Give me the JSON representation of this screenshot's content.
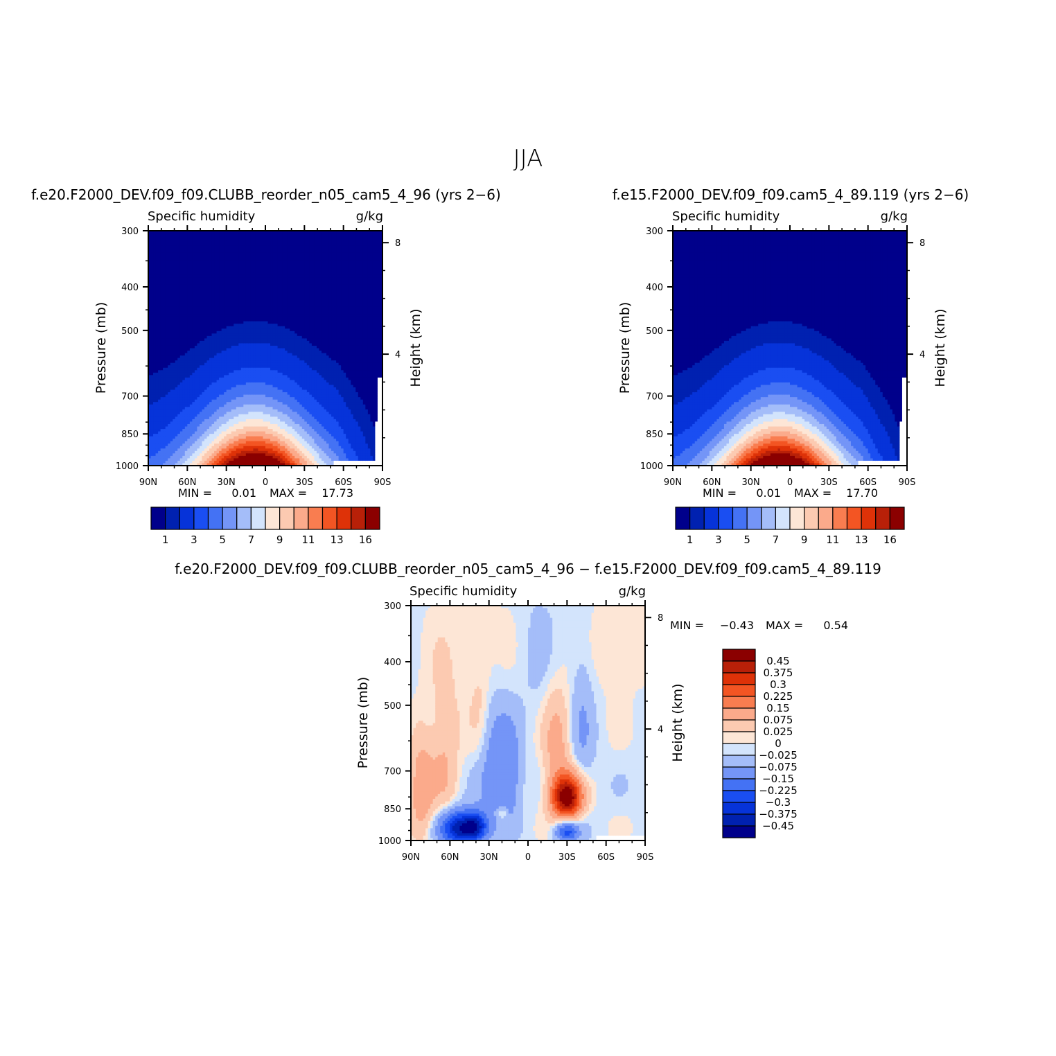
{
  "figure": {
    "title": "JJA",
    "colors": {
      "abs_palette": [
        "#00008b",
        "#0021b0",
        "#0633d9",
        "#1a4ef2",
        "#4472f4",
        "#7495f7",
        "#a4bdf9",
        "#d3e4fc",
        "#fde6d6",
        "#fccab1",
        "#fbaa8b",
        "#f97d50",
        "#f35523",
        "#de3208",
        "#b82008",
        "#8b0000"
      ],
      "diff_palette": [
        "#00008b",
        "#0021b0",
        "#0633d9",
        "#1a4ef2",
        "#4472f4",
        "#7495f7",
        "#a4bdf9",
        "#d3e4fc",
        "#fde6d6",
        "#fccab1",
        "#fbaa8b",
        "#f97d50",
        "#f35523",
        "#de3208",
        "#b82008",
        "#8b0000"
      ],
      "missing": "#ffffff"
    }
  },
  "chart_data": [
    {
      "id": "panel1",
      "type": "heatmap",
      "title": "f.e20.F2000_DEV.f09_f09.CLUBB_reorder_n05_cam5_4_96 (yrs 2−6)",
      "left_string": "Specific humidity",
      "right_string": "g/kg",
      "xlabel": "",
      "ylabel": "Pressure (mb)",
      "y2label": "Height (km)",
      "x_ticks": [
        "90N",
        "60N",
        "30N",
        "0",
        "30S",
        "60S",
        "90S"
      ],
      "x_values": [
        90,
        60,
        30,
        0,
        -30,
        -60,
        -90
      ],
      "y_ticks": [
        "300",
        "400",
        "500",
        "700",
        "850",
        "1000"
      ],
      "y_values": [
        300,
        400,
        500,
        700,
        850,
        1000
      ],
      "y2_ticks": [
        "8",
        "4"
      ],
      "y2_values": [
        8,
        4
      ],
      "xlim": [
        90,
        -90
      ],
      "ylim": [
        1000,
        300
      ],
      "min_label": "MIN =",
      "min_value": "0.01",
      "max_label": "MAX =",
      "max_value": "17.73",
      "colorbar_levels": [
        0.5,
        1,
        2,
        3,
        4,
        5,
        6,
        7,
        8,
        9,
        10,
        11,
        12,
        13,
        14,
        16
      ],
      "colorbar_labels": [
        "1",
        "3",
        "5",
        "7",
        "9",
        "11",
        "13",
        "16"
      ],
      "field": {
        "kind": "abs",
        "peak_lat": 8,
        "peak_value": 17.73
      }
    },
    {
      "id": "panel2",
      "type": "heatmap",
      "title": "f.e15.F2000_DEV.f09_f09.cam5_4_89.119 (yrs 2−6)",
      "left_string": "Specific humidity",
      "right_string": "g/kg",
      "xlabel": "",
      "ylabel": "Pressure (mb)",
      "y2label": "Height (km)",
      "x_ticks": [
        "90N",
        "60N",
        "30N",
        "0",
        "30S",
        "60S",
        "90S"
      ],
      "x_values": [
        90,
        60,
        30,
        0,
        -30,
        -60,
        -90
      ],
      "y_ticks": [
        "300",
        "400",
        "500",
        "700",
        "850",
        "1000"
      ],
      "y_values": [
        300,
        400,
        500,
        700,
        850,
        1000
      ],
      "y2_ticks": [
        "8",
        "4"
      ],
      "y2_values": [
        8,
        4
      ],
      "xlim": [
        90,
        -90
      ],
      "ylim": [
        1000,
        300
      ],
      "min_label": "MIN =",
      "min_value": "0.01",
      "max_label": "MAX =",
      "max_value": "17.70",
      "colorbar_levels": [
        0.5,
        1,
        2,
        3,
        4,
        5,
        6,
        7,
        8,
        9,
        10,
        11,
        12,
        13,
        14,
        16
      ],
      "colorbar_labels": [
        "1",
        "3",
        "5",
        "7",
        "9",
        "11",
        "13",
        "16"
      ],
      "field": {
        "kind": "abs",
        "peak_lat": 8,
        "peak_value": 17.7
      }
    },
    {
      "id": "panel3",
      "type": "heatmap",
      "title": "f.e20.F2000_DEV.f09_f09.CLUBB_reorder_n05_cam5_4_96 − f.e15.F2000_DEV.f09_f09.cam5_4_89.119",
      "left_string": "Specific humidity",
      "right_string": "g/kg",
      "xlabel": "",
      "ylabel": "Pressure (mb)",
      "y2label": "Height (km)",
      "x_ticks": [
        "90N",
        "60N",
        "30N",
        "0",
        "30S",
        "60S",
        "90S"
      ],
      "x_values": [
        90,
        60,
        30,
        0,
        -30,
        -60,
        -90
      ],
      "y_ticks": [
        "300",
        "400",
        "500",
        "700",
        "850",
        "1000"
      ],
      "y_values": [
        300,
        400,
        500,
        700,
        850,
        1000
      ],
      "y2_ticks": [
        "8",
        "4"
      ],
      "y2_values": [
        8,
        4
      ],
      "xlim": [
        90,
        -90
      ],
      "ylim": [
        1000,
        300
      ],
      "min_label": "MIN =",
      "min_value": "−0.43",
      "max_label": "MAX =",
      "max_value": "0.54",
      "colorbar_levels": [
        -0.45,
        -0.375,
        -0.3,
        -0.225,
        -0.15,
        -0.075,
        -0.025,
        0,
        0.025,
        0.075,
        0.15,
        0.225,
        0.3,
        0.375,
        0.45
      ],
      "colorbar_labels": [
        "0.45",
        "0.375",
        "0.3",
        "0.225",
        "0.15",
        "0.075",
        "0.025",
        "0",
        "−0.025",
        "−0.075",
        "−0.15",
        "−0.225",
        "−0.3",
        "−0.375",
        "−0.45"
      ],
      "field": {
        "kind": "diff",
        "anomalies": [
          {
            "lat": 52,
            "p": 940,
            "amp": -0.43,
            "slat": 10,
            "sp": 55
          },
          {
            "lat": 40,
            "p": 930,
            "amp": -0.28,
            "slat": 6,
            "sp": 45
          },
          {
            "lat": 28,
            "p": 690,
            "amp": -0.12,
            "slat": 8,
            "sp": 160
          },
          {
            "lat": 14,
            "p": 720,
            "amp": -0.12,
            "slat": 6,
            "sp": 120
          },
          {
            "lat": -30,
            "p": 800,
            "amp": 0.54,
            "slat": 8,
            "sp": 60
          },
          {
            "lat": -30,
            "p": 955,
            "amp": -0.25,
            "slat": 6,
            "sp": 35
          },
          {
            "lat": -22,
            "p": 620,
            "amp": 0.11,
            "slat": 7,
            "sp": 120
          },
          {
            "lat": 82,
            "p": 780,
            "amp": 0.14,
            "slat": 6,
            "sp": 140
          },
          {
            "lat": 65,
            "p": 670,
            "amp": 0.09,
            "slat": 8,
            "sp": 150
          },
          {
            "lat": 35,
            "p": 560,
            "amp": 0.05,
            "slat": 6,
            "sp": 140
          },
          {
            "lat": 20,
            "p": 870,
            "amp": 0.09,
            "slat": 3,
            "sp": 20
          },
          {
            "lat": -42,
            "p": 560,
            "amp": -0.06,
            "slat": 6,
            "sp": 160
          },
          {
            "lat": -70,
            "p": 360,
            "amp": 0.04,
            "slat": 14,
            "sp": 80
          },
          {
            "lat": 40,
            "p": 400,
            "amp": 0.03,
            "slat": 18,
            "sp": 100
          },
          {
            "lat": -5,
            "p": 400,
            "amp": -0.02,
            "slat": 12,
            "sp": 100
          }
        ],
        "background": -0.01,
        "peak_value": 0.54
      }
    }
  ]
}
